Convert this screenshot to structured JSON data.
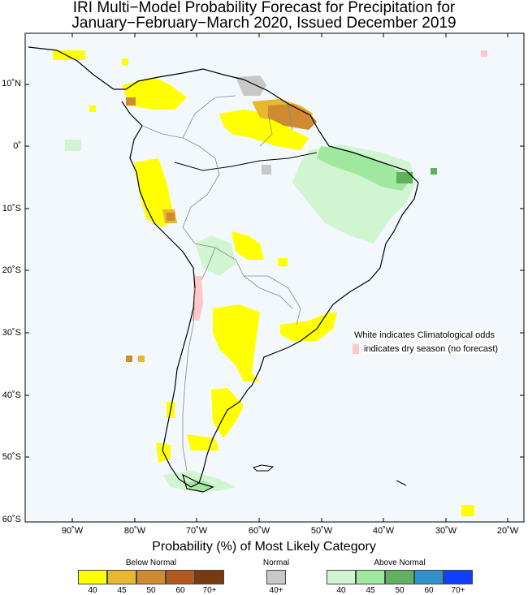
{
  "title_line1": "IRI Multi−Model Probability Forecast for Precipitation for",
  "title_line2": "January−February−March 2020, Issued December 2019",
  "lat_labels": [
    "10˚N",
    "0˚",
    "10˚S",
    "20˚S",
    "30˚S",
    "40˚S",
    "50˚S",
    "60˚S"
  ],
  "lon_labels": [
    "90˚W",
    "80˚W",
    "70˚W",
    "60˚W",
    "50˚W",
    "40˚W",
    "30˚W",
    "20˚W"
  ],
  "notes": {
    "climatological": "White indicates Climatological odds",
    "dry_season": "indicates dry season (no forecast)"
  },
  "colorbar": {
    "title": "Probability (%) of Most Likely Category",
    "below_label": "Below Normal",
    "normal_label": "Normal",
    "above_label": "Above Normal",
    "below_ticks": [
      "40",
      "45",
      "50",
      "60",
      "70+"
    ],
    "normal_ticks": [
      "40+"
    ],
    "above_ticks": [
      "40",
      "45",
      "50",
      "60",
      "70+"
    ]
  },
  "colors": {
    "below": [
      "#ffff00",
      "#e8b830",
      "#d08a30",
      "#b05a20",
      "#7a3a10"
    ],
    "normal": "#c8c8c8",
    "above": [
      "#d0f5d0",
      "#a0e8a0",
      "#60b060",
      "#3090d0",
      "#1040ff"
    ],
    "dry": "#ffc8c8",
    "ocean": "#f2f8fc"
  }
}
